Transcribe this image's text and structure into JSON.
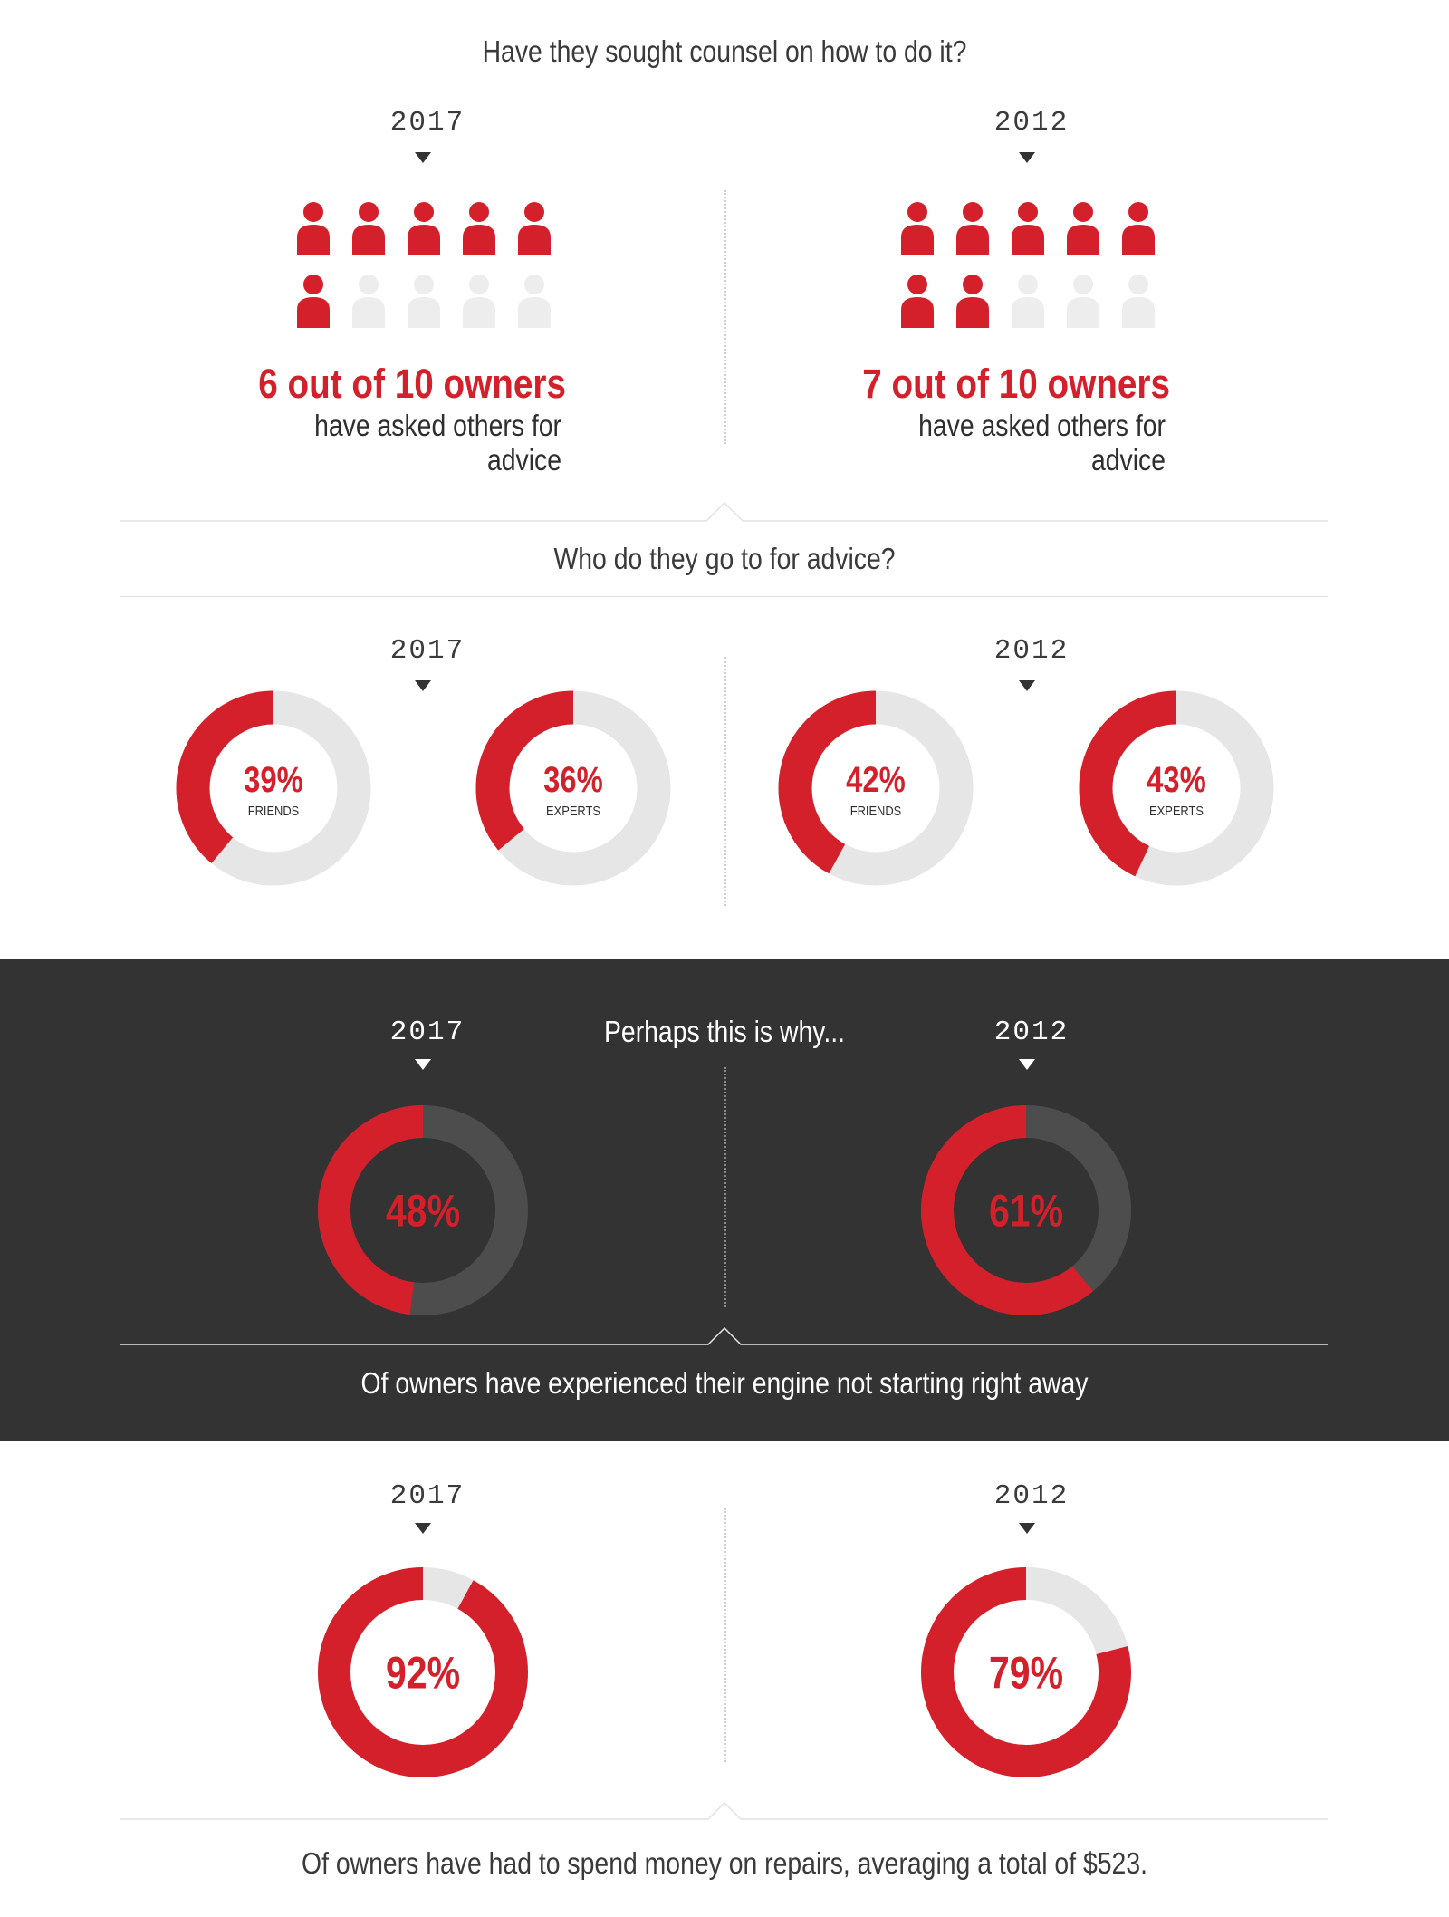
{
  "sections": {
    "counsel": {
      "question": "Have they sought counsel on how to do it?",
      "left": {
        "year": "2017",
        "stat": "6 out of 10 owners",
        "desc": "have asked others for advice"
      },
      "right": {
        "year": "2012",
        "stat": "7 out of 10 owners",
        "desc": "have asked others for advice"
      }
    },
    "advice": {
      "question": "Who do they go to for advice?",
      "left": {
        "year": "2017"
      },
      "right": {
        "year": "2012"
      }
    },
    "engine": {
      "heading": "Perhaps this is why...",
      "left": {
        "year": "2017",
        "label": "48%"
      },
      "right": {
        "year": "2012",
        "label": "61%"
      },
      "caption": "Of owners have experienced their engine not starting right away"
    },
    "repairs": {
      "left": {
        "year": "2017",
        "label": "92%"
      },
      "right": {
        "year": "2012",
        "label": "79%"
      },
      "caption": "Of owners have had to spend money on repairs, averaging a total of $523."
    }
  },
  "colors": {
    "accent": "#d3202a",
    "track_light": "#e6e6e6",
    "icon_inactive": "#ededed",
    "dark_bg": "#333333",
    "track_dark": "#4d4d4d"
  },
  "chart_data": [
    {
      "type": "pictogram",
      "title": "Have they sought counsel on how to do it?",
      "categories": [
        "2017",
        "2012"
      ],
      "series": [
        {
          "values": [
            6,
            7
          ]
        }
      ],
      "total": 10,
      "icon": "person-icon"
    },
    {
      "type": "donut",
      "title": "Who do they go to for advice?",
      "items": [
        {
          "year": "2017",
          "pct": 39,
          "value_label": "39%",
          "category": "FRIENDS"
        },
        {
          "year": "2017",
          "pct": 36,
          "value_label": "36%",
          "category": "EXPERTS"
        },
        {
          "year": "2012",
          "pct": 42,
          "value_label": "42%",
          "category": "FRIENDS"
        },
        {
          "year": "2012",
          "pct": 43,
          "value_label": "43%",
          "category": "EXPERTS"
        }
      ]
    },
    {
      "type": "donut",
      "title": "Perhaps this is why...",
      "items": [
        {
          "year": "2017",
          "pct": 48,
          "value_label": "48%"
        },
        {
          "year": "2012",
          "pct": 61,
          "value_label": "61%"
        }
      ],
      "caption": "Of owners have experienced their engine not starting right away"
    },
    {
      "type": "donut",
      "items": [
        {
          "year": "2017",
          "pct": 92,
          "value_label": "92%"
        },
        {
          "year": "2012",
          "pct": 79,
          "value_label": "79%"
        }
      ],
      "caption": "Of owners have had to spend money on repairs, averaging a total of $523."
    }
  ]
}
